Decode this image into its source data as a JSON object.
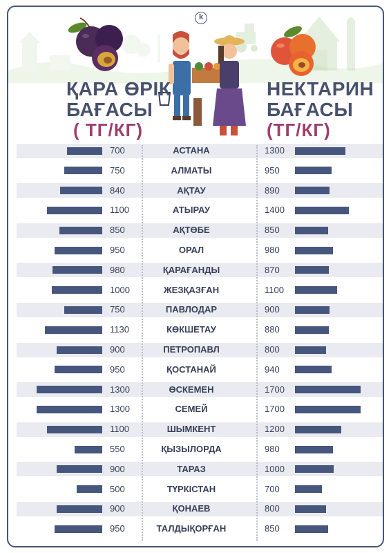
{
  "logo_letter": "k",
  "header": {
    "left_title_1": "ҚАРА ӨРІК",
    "left_title_2": "БАҒАСЫ",
    "left_unit": "( ТГ/КГ)",
    "right_title_1": "НЕКТАРИН",
    "right_title_2": "БАҒАСЫ",
    "right_unit": "(ТГ/КГ)"
  },
  "colors": {
    "bar": "#47567d",
    "stripe": "#e9ebf0",
    "title": "#47516d",
    "unit": "#9e3f6e",
    "border": "#4a5675"
  },
  "icons": [
    "plum-illustration",
    "farmers-illustration",
    "nectarine-illustration",
    "barn-illustration",
    "tractor-illustration"
  ],
  "chart_data": {
    "type": "bar",
    "orientation": "horizontal",
    "categories": [
      "АСТАНА",
      "АЛМАТЫ",
      "АҚТАУ",
      "АТЫРАУ",
      "АҚТӨБЕ",
      "ОРАЛ",
      "ҚАРАҒАНДЫ",
      "ЖЕЗҚАЗҒАН",
      "ПАВЛОДАР",
      "КӨКШЕТАУ",
      "ПЕТРОПАВЛ",
      "ҚОСТАНАЙ",
      "ӨСКЕМЕН",
      "СЕМЕЙ",
      "ШЫМКЕНТ",
      "ҚЫЗЫЛОРДА",
      "ТАРАЗ",
      "ТҮРКІСТАН",
      "ҚОНАЕВ",
      "ТАЛДЫҚОРҒАН"
    ],
    "series": [
      {
        "name": "ҚАРА ӨРІК БАҒАСЫ ( ТГ/КГ)",
        "values": [
          700,
          750,
          840,
          1100,
          850,
          950,
          980,
          1000,
          750,
          1130,
          900,
          950,
          1300,
          1300,
          1100,
          550,
          900,
          500,
          900,
          950
        ]
      },
      {
        "name": "НЕКТАРИН БАҒАСЫ (ТГ/КГ)",
        "values": [
          1300,
          950,
          890,
          1400,
          850,
          980,
          870,
          1100,
          900,
          880,
          800,
          940,
          1700,
          1700,
          1200,
          980,
          1000,
          700,
          800,
          850
        ]
      }
    ]
  }
}
